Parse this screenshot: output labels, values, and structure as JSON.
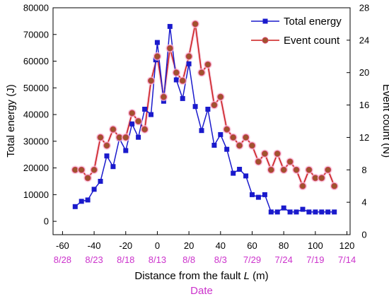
{
  "chart_data": {
    "type": "line",
    "xlabel_main": "Distance from the fault ",
    "xlabel_italic": "L",
    "xlabel_unit": " (m)",
    "ylabel_left": "Total energy (J)",
    "ylabel_right": "Event count (N)",
    "date_axis_label": "Date",
    "xlim": [
      -66,
      122
    ],
    "ylim_left": [
      -5000,
      80000
    ],
    "ylim_right": [
      0,
      28
    ],
    "x_ticks": [
      -60,
      -40,
      -20,
      0,
      20,
      40,
      60,
      80,
      100,
      120
    ],
    "y_left_ticks": [
      0,
      10000,
      20000,
      30000,
      40000,
      50000,
      60000,
      70000,
      80000
    ],
    "y_right_ticks": [
      0,
      4,
      8,
      12,
      16,
      20,
      24,
      28
    ],
    "date_ticks": [
      {
        "x": -60,
        "label": "8/28"
      },
      {
        "x": -40,
        "label": "8/23"
      },
      {
        "x": -20,
        "label": "8/18"
      },
      {
        "x": 0,
        "label": "8/13"
      },
      {
        "x": 20,
        "label": "8/8"
      },
      {
        "x": 40,
        "label": "8/3"
      },
      {
        "x": 60,
        "label": "7/29"
      },
      {
        "x": 80,
        "label": "7/24"
      },
      {
        "x": 100,
        "label": "7/19"
      },
      {
        "x": 120,
        "label": "7/14"
      }
    ],
    "legend_position": "top-right",
    "series": [
      {
        "name": "Total energy",
        "axis": "left",
        "color": "#1a1acc",
        "marker": "square",
        "x": [
          -52,
          -48,
          -44,
          -40,
          -36,
          -32,
          -28,
          -24,
          -20,
          -16,
          -12,
          -8,
          -4,
          -1,
          0,
          4,
          8,
          12,
          16,
          20,
          24,
          28,
          32,
          36,
          40,
          44,
          48,
          52,
          56,
          60,
          64,
          68,
          72,
          76,
          80,
          84,
          88,
          92,
          96,
          100,
          104,
          108,
          112
        ],
        "y": [
          5500,
          7500,
          8000,
          12000,
          15000,
          24500,
          20500,
          31000,
          26500,
          36500,
          31500,
          42000,
          40000,
          60500,
          67000,
          45000,
          73000,
          53000,
          46000,
          59000,
          43000,
          34000,
          42000,
          28500,
          32500,
          27000,
          18000,
          19500,
          17000,
          10000,
          9000,
          10000,
          3500,
          3500,
          5000,
          3500,
          3500,
          4500,
          3500,
          3500,
          3500,
          3500,
          3500
        ]
      },
      {
        "name": "Event count",
        "axis": "right",
        "color": "#cc1a1a",
        "marker": "circle",
        "x": [
          -52,
          -48,
          -44,
          -40,
          -36,
          -32,
          -28,
          -24,
          -20,
          -16,
          -12,
          -8,
          -4,
          0,
          4,
          8,
          12,
          16,
          20,
          24,
          28,
          32,
          36,
          40,
          44,
          48,
          52,
          56,
          60,
          64,
          68,
          72,
          76,
          80,
          84,
          88,
          92,
          96,
          100,
          104,
          108,
          112
        ],
        "y": [
          8,
          8,
          7,
          8,
          12,
          11,
          13,
          12,
          12,
          15,
          14,
          13,
          19,
          22,
          17,
          23,
          20,
          19,
          22,
          26,
          20,
          21,
          16,
          17,
          13,
          12,
          11,
          12,
          11,
          9,
          10,
          8,
          10,
          8,
          9,
          8,
          6,
          8,
          7,
          7,
          8,
          6
        ]
      }
    ]
  }
}
